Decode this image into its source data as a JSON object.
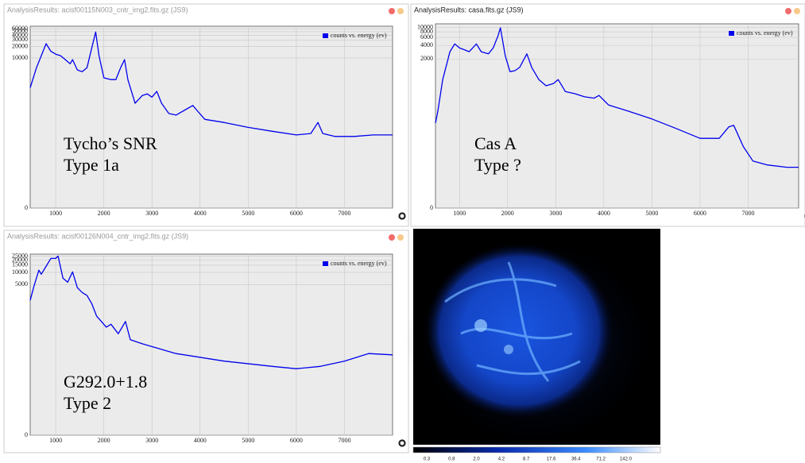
{
  "windows": [
    {
      "title": "AnalysisResults: acisf00115N003_cntr_img2.fits.gz (JS9)",
      "chart": {
        "type": "line",
        "x": [
          470,
          600,
          800,
          900,
          1000,
          1100,
          1200,
          1300,
          1350,
          1450,
          1550,
          1650,
          1750,
          1830,
          1900,
          2000,
          2150,
          2250,
          2350,
          2430,
          2500,
          2650,
          2800,
          2900,
          3000,
          3100,
          3200,
          3350,
          3500,
          3700,
          3850,
          3950,
          4100,
          4500,
          5000,
          5500,
          6000,
          6300,
          6450,
          6550,
          6800,
          7200,
          7600,
          8000
        ],
        "series": [
          {
            "name": "counts vs. energy (ev)",
            "color": "#0000ee",
            "values": [
              1600,
              5500,
              24000,
              15000,
              12600,
              11500,
              9000,
              7000,
              9000,
              4800,
              4300,
              5500,
              18600,
              49000,
              11500,
              2950,
              2650,
              2650,
              5500,
              9000,
              2650,
              620,
              1000,
              1100,
              900,
              1280,
              620,
              330,
              300,
              420,
              540,
              380,
              230,
              190,
              140,
              110,
              88,
              96,
              190,
              96,
              80,
              80,
              88,
              88
            ]
          }
        ],
        "xlim": [
          470,
          8000
        ],
        "xticks": [
          1000,
          2000,
          3000,
          4000,
          5000,
          6000,
          7000
        ],
        "ylim": [
          0,
          70000
        ],
        "yticks": [
          0,
          10000,
          20000,
          30000,
          40000,
          50000,
          60000
        ],
        "yscale": "log",
        "grid": true,
        "legend": "upper right",
        "annotations": [
          "Tycho’s SNR",
          "Type 1a"
        ]
      }
    },
    {
      "title": "AnalysisResults: casa.fits.gz (JS9)",
      "chart": {
        "type": "line",
        "x": [
          500,
          550,
          650,
          800,
          900,
          1000,
          1100,
          1200,
          1350,
          1450,
          1600,
          1700,
          1800,
          1850,
          1950,
          2050,
          2150,
          2250,
          2400,
          2500,
          2650,
          2800,
          2950,
          3050,
          3200,
          3400,
          3600,
          3800,
          3900,
          4100,
          4500,
          5000,
          5500,
          6000,
          6400,
          6600,
          6700,
          6900,
          7100,
          7400,
          7800,
          8050
        ],
        "series": [
          {
            "name": "counts vs. energy (ev)",
            "color": "#0000ee",
            "values": [
              75,
              140,
              700,
              2900,
              4300,
              3500,
              3200,
              2900,
              4300,
              2900,
              2600,
              3500,
              6500,
              9800,
              2350,
              1050,
              1100,
              1300,
              2600,
              1300,
              700,
              510,
              570,
              700,
              380,
              340,
              290,
              270,
              310,
              190,
              140,
              93,
              57,
              34,
              34,
              62,
              67,
              22,
              10,
              8,
              7,
              7
            ]
          }
        ],
        "xlim": [
          500,
          8050
        ],
        "xticks": [
          1000,
          2000,
          3000,
          4000,
          5000,
          6000,
          7000
        ],
        "ylim": [
          0,
          12000
        ],
        "yticks": [
          0,
          2000,
          4000,
          6000,
          8000,
          10000
        ],
        "yscale": "log",
        "grid": true,
        "legend": "upper right",
        "annotations": [
          "Cas A",
          "Type ?"
        ]
      }
    },
    {
      "title": "AnalysisResults: acisf00126N004_cntr_img2.fits.gz (JS9)",
      "chart": {
        "type": "line",
        "x": [
          470,
          550,
          650,
          700,
          800,
          900,
          1000,
          1050,
          1150,
          1250,
          1350,
          1450,
          1550,
          1650,
          1750,
          1850,
          1950,
          2050,
          2150,
          2300,
          2400,
          2450,
          2550,
          2800,
          3500,
          4500,
          5500,
          6000,
          6500,
          7000,
          7500,
          8000
        ],
        "series": [
          {
            "name": "counts vs. energy (ev)",
            "color": "#0000ee",
            "values": [
              2050,
              4600,
              11300,
              9000,
              14000,
              22000,
              22000,
              25000,
              7200,
              5700,
              10300,
              4200,
              3200,
              2700,
              1700,
              840,
              620,
              450,
              530,
              310,
              490,
              620,
              220,
              175,
              100,
              65,
              48,
              42,
              48,
              65,
              100,
              93
            ]
          }
        ],
        "xlim": [
          470,
          8000
        ],
        "xticks": [
          1000,
          2000,
          3000,
          4000,
          5000,
          6000,
          7000
        ],
        "ylim": [
          0,
          28000
        ],
        "yticks": [
          0,
          5000,
          10000,
          15000,
          20000,
          25000
        ],
        "yscale": "log",
        "grid": true,
        "legend": "upper right",
        "annotations": [
          "G292.0+1.8",
          "Type 2"
        ]
      }
    }
  ],
  "image": {
    "colorbar": [
      "0.3",
      "0.8",
      "2.0",
      "4.2",
      "8.7",
      "17.6",
      "36.4",
      "71.2",
      "142.0"
    ]
  }
}
